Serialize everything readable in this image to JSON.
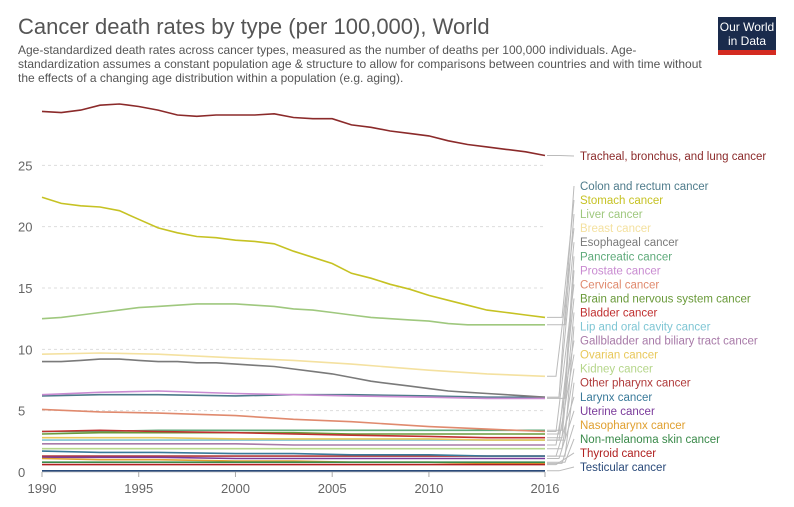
{
  "title": "Cancer death rates by type (per 100,000), World",
  "subtitle": "Age-standardized death rates across cancer types, measured as the number of deaths per 100,000 individuals. Age-standardization assumes a constant population age & structure to allow for comparisons between countries and with time without the effects of a changing age distribution within a population (e.g. aging).",
  "logo": {
    "line1": "Our World",
    "line2": "in Data"
  },
  "chart_data": {
    "type": "line",
    "x_ticks": [
      1990,
      1995,
      2000,
      2005,
      2010,
      2016
    ],
    "y_ticks": [
      0,
      5,
      10,
      15,
      20,
      25
    ],
    "xlim": [
      1990,
      2016
    ],
    "ylim": [
      0,
      30
    ],
    "grid": "horizontal dashed",
    "legend": "right",
    "series": [
      {
        "name": "Tracheal, bronchus, and lung cancer",
        "color": "#8b2a2a",
        "x": [
          1990,
          1991,
          1992,
          1993,
          1994,
          1995,
          1996,
          1997,
          1998,
          1999,
          2000,
          2001,
          2002,
          2003,
          2004,
          2005,
          2006,
          2007,
          2008,
          2009,
          2010,
          2011,
          2012,
          2013,
          2014,
          2015,
          2016
        ],
        "y": [
          29.4,
          29.3,
          29.5,
          29.9,
          30.0,
          29.8,
          29.5,
          29.1,
          29.0,
          29.1,
          29.1,
          29.1,
          29.2,
          28.9,
          28.8,
          28.8,
          28.3,
          28.1,
          27.8,
          27.6,
          27.4,
          27.0,
          26.7,
          26.5,
          26.3,
          26.1,
          25.8
        ]
      },
      {
        "name": "Colon and rectum cancer",
        "color": "#4e7b8b",
        "x": [
          1990,
          1993,
          1996,
          2000,
          2003,
          2006,
          2010,
          2013,
          2016
        ],
        "y": [
          6.2,
          6.3,
          6.3,
          6.2,
          6.3,
          6.3,
          6.2,
          6.1,
          6.1
        ]
      },
      {
        "name": "Stomach cancer",
        "color": "#c6c223",
        "x": [
          1990,
          1991,
          1992,
          1993,
          1994,
          1995,
          1996,
          1997,
          1998,
          1999,
          2000,
          2001,
          2002,
          2003,
          2004,
          2005,
          2006,
          2007,
          2008,
          2009,
          2010,
          2011,
          2012,
          2013,
          2014,
          2015,
          2016
        ],
        "y": [
          22.4,
          21.9,
          21.7,
          21.6,
          21.3,
          20.6,
          19.9,
          19.5,
          19.2,
          19.1,
          18.9,
          18.8,
          18.6,
          18.0,
          17.5,
          17.0,
          16.2,
          15.8,
          15.3,
          14.9,
          14.4,
          14.0,
          13.6,
          13.2,
          13.0,
          12.8,
          12.6
        ]
      },
      {
        "name": "Liver cancer",
        "color": "#9fc87e",
        "x": [
          1990,
          1991,
          1992,
          1993,
          1994,
          1995,
          1996,
          1997,
          1998,
          1999,
          2000,
          2001,
          2002,
          2003,
          2004,
          2005,
          2006,
          2007,
          2008,
          2009,
          2010,
          2011,
          2012,
          2013,
          2014,
          2015,
          2016
        ],
        "y": [
          12.5,
          12.6,
          12.8,
          13.0,
          13.2,
          13.4,
          13.5,
          13.6,
          13.7,
          13.7,
          13.7,
          13.6,
          13.5,
          13.3,
          13.2,
          13.0,
          12.8,
          12.6,
          12.5,
          12.4,
          12.3,
          12.1,
          12.0,
          12.0,
          12.0,
          12.0,
          12.0
        ]
      },
      {
        "name": "Breast cancer",
        "color": "#f4e1a0",
        "x": [
          1990,
          1993,
          1996,
          2000,
          2003,
          2006,
          2010,
          2013,
          2016
        ],
        "y": [
          9.6,
          9.7,
          9.6,
          9.3,
          9.1,
          8.8,
          8.3,
          8.0,
          7.8
        ]
      },
      {
        "name": "Esophageal cancer",
        "color": "#7a7a7a",
        "x": [
          1990,
          1991,
          1992,
          1993,
          1994,
          1995,
          1996,
          1997,
          1998,
          1999,
          2000,
          2001,
          2002,
          2003,
          2004,
          2005,
          2006,
          2007,
          2008,
          2009,
          2010,
          2011,
          2012,
          2013,
          2014,
          2015,
          2016
        ],
        "y": [
          9.0,
          9.0,
          9.1,
          9.2,
          9.2,
          9.1,
          9.0,
          9.0,
          8.9,
          8.9,
          8.8,
          8.7,
          8.6,
          8.4,
          8.2,
          8.0,
          7.7,
          7.4,
          7.2,
          7.0,
          6.8,
          6.6,
          6.5,
          6.4,
          6.3,
          6.2,
          6.1
        ]
      },
      {
        "name": "Pancreatic cancer",
        "color": "#5eaa7a",
        "x": [
          1990,
          1993,
          1996,
          2000,
          2003,
          2006,
          2010,
          2013,
          2016
        ],
        "y": [
          3.3,
          3.3,
          3.4,
          3.4,
          3.4,
          3.4,
          3.4,
          3.4,
          3.4
        ]
      },
      {
        "name": "Prostate cancer",
        "color": "#c98bd1",
        "x": [
          1990,
          1993,
          1996,
          2000,
          2003,
          2006,
          2010,
          2013,
          2016
        ],
        "y": [
          6.3,
          6.5,
          6.6,
          6.4,
          6.3,
          6.2,
          6.1,
          6.0,
          6.0
        ]
      },
      {
        "name": "Cervical cancer",
        "color": "#e08a6e",
        "x": [
          1990,
          1993,
          1996,
          2000,
          2003,
          2006,
          2010,
          2013,
          2016
        ],
        "y": [
          5.1,
          4.9,
          4.8,
          4.6,
          4.3,
          4.1,
          3.7,
          3.5,
          3.3
        ]
      },
      {
        "name": "Brain and nervous system cancer",
        "color": "#6a9a3a",
        "x": [
          1990,
          1993,
          1996,
          2000,
          2003,
          2006,
          2010,
          2013,
          2016
        ],
        "y": [
          3.1,
          3.2,
          3.2,
          3.2,
          3.2,
          3.1,
          3.1,
          3.1,
          3.1
        ]
      },
      {
        "name": "Bladder cancer",
        "color": "#c03030",
        "x": [
          1990,
          1993,
          1996,
          2000,
          2003,
          2006,
          2010,
          2013,
          2016
        ],
        "y": [
          3.3,
          3.4,
          3.3,
          3.2,
          3.1,
          3.0,
          2.9,
          2.8,
          2.8
        ]
      },
      {
        "name": "Lip and oral cavity cancer",
        "color": "#7fc6d4",
        "x": [
          1990,
          1993,
          1996,
          2000,
          2003,
          2006,
          2010,
          2013,
          2016
        ],
        "y": [
          2.6,
          2.6,
          2.6,
          2.6,
          2.6,
          2.6,
          2.6,
          2.6,
          2.6
        ]
      },
      {
        "name": "Gallbladder and biliary tract cancer",
        "color": "#a87aa8",
        "x": [
          1990,
          1993,
          1996,
          2000,
          2003,
          2006,
          2010,
          2013,
          2016
        ],
        "y": [
          2.3,
          2.3,
          2.3,
          2.3,
          2.2,
          2.2,
          2.2,
          2.2,
          2.2
        ]
      },
      {
        "name": "Ovarian cancer",
        "color": "#e8c85a",
        "x": [
          1990,
          1993,
          1996,
          2000,
          2003,
          2006,
          2010,
          2013,
          2016
        ],
        "y": [
          2.8,
          2.8,
          2.8,
          2.7,
          2.7,
          2.7,
          2.7,
          2.6,
          2.6
        ]
      },
      {
        "name": "Kidney cancer",
        "color": "#b5d68a",
        "x": [
          1990,
          1993,
          1996,
          2000,
          2003,
          2006,
          2010,
          2013,
          2016
        ],
        "y": [
          1.9,
          1.9,
          1.9,
          1.9,
          1.9,
          1.9,
          1.9,
          1.9,
          1.9
        ]
      },
      {
        "name": "Other pharynx cancer",
        "color": "#b03a3a",
        "x": [
          1990,
          1993,
          1996,
          2000,
          2003,
          2006,
          2010,
          2013,
          2016
        ],
        "y": [
          1.3,
          1.3,
          1.3,
          1.3,
          1.3,
          1.3,
          1.3,
          1.3,
          1.3
        ]
      },
      {
        "name": "Larynx cancer",
        "color": "#3a7a9a",
        "x": [
          1990,
          1993,
          1996,
          2000,
          2003,
          2006,
          2010,
          2013,
          2016
        ],
        "y": [
          1.7,
          1.6,
          1.6,
          1.5,
          1.5,
          1.4,
          1.4,
          1.3,
          1.3
        ]
      },
      {
        "name": "Uterine cancer",
        "color": "#7a3a9a",
        "x": [
          1990,
          1993,
          1996,
          2000,
          2003,
          2006,
          2010,
          2013,
          2016
        ],
        "y": [
          1.2,
          1.2,
          1.2,
          1.1,
          1.1,
          1.1,
          1.1,
          1.1,
          1.1
        ]
      },
      {
        "name": "Nasopharynx cancer",
        "color": "#e0a030",
        "x": [
          1990,
          1993,
          1996,
          2000,
          2003,
          2006,
          2010,
          2013,
          2016
        ],
        "y": [
          1.1,
          1.0,
          1.0,
          0.9,
          0.9,
          0.8,
          0.8,
          0.7,
          0.7
        ]
      },
      {
        "name": "Non-melanoma skin cancer",
        "color": "#3a8a4a",
        "x": [
          1990,
          1993,
          1996,
          2000,
          2003,
          2006,
          2010,
          2013,
          2016
        ],
        "y": [
          0.8,
          0.8,
          0.8,
          0.8,
          0.8,
          0.8,
          0.8,
          0.8,
          0.8
        ]
      },
      {
        "name": "Thyroid cancer",
        "color": "#b02020",
        "x": [
          1990,
          1993,
          1996,
          2000,
          2003,
          2006,
          2010,
          2013,
          2016
        ],
        "y": [
          0.6,
          0.6,
          0.6,
          0.6,
          0.6,
          0.6,
          0.6,
          0.6,
          0.6
        ]
      },
      {
        "name": "Testicular cancer",
        "color": "#2a4a7a",
        "x": [
          1990,
          1993,
          1996,
          2000,
          2003,
          2006,
          2010,
          2013,
          2016
        ],
        "y": [
          0.1,
          0.1,
          0.1,
          0.1,
          0.1,
          0.1,
          0.1,
          0.1,
          0.1
        ]
      }
    ]
  }
}
